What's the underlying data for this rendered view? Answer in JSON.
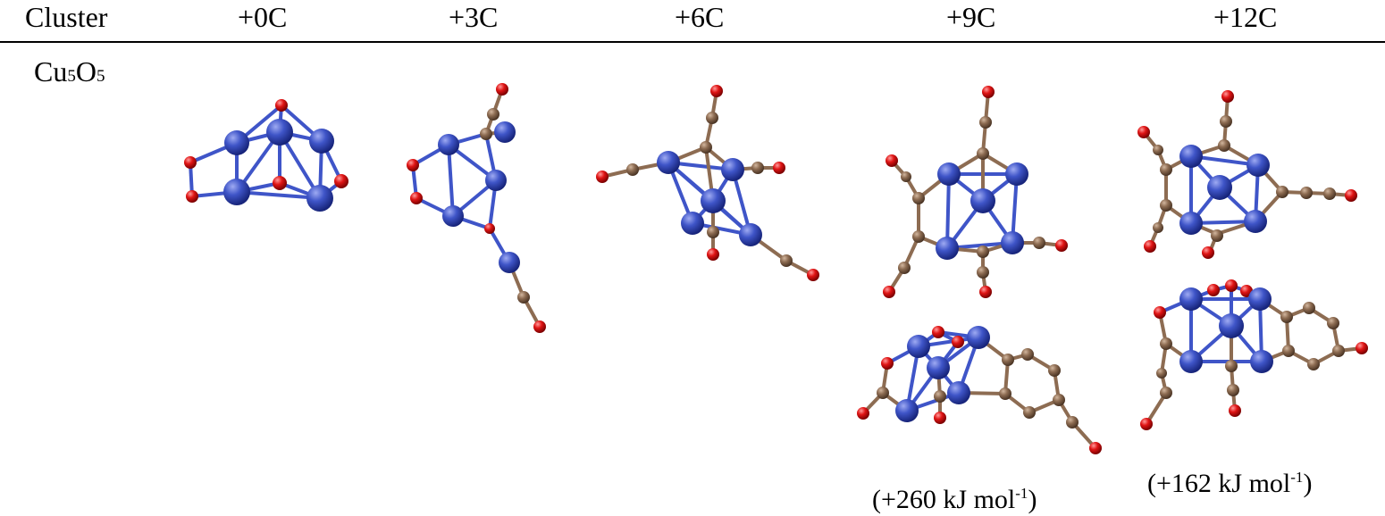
{
  "table": {
    "headers": [
      "Cluster",
      "+0C",
      "+3C",
      "+6C",
      "+9C",
      "+12C"
    ],
    "row": {
      "label_base": "Cu",
      "label_sub1": "5",
      "label_mid": "O",
      "label_sub2": "5"
    },
    "energies": {
      "c9": {
        "prefix": "(+260 kJ mol",
        "sup": "-1",
        "suffix": ")"
      },
      "c12": {
        "prefix": "(+162 kJ mol",
        "sup": "-1",
        "suffix": ")"
      }
    }
  },
  "atoms": {
    "Cu": "#3f55c8",
    "O": "#e01515",
    "C": "#8d6c52"
  }
}
